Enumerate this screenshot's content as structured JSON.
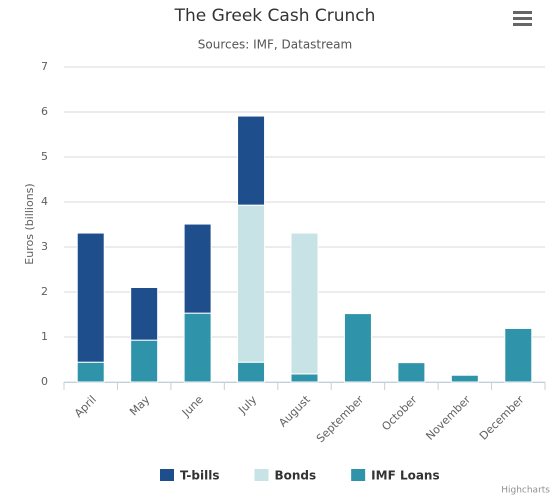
{
  "chart_data": {
    "type": "stacked-bar",
    "title": "The Greek Cash Crunch",
    "subtitle": "Sources: IMF, Datastream",
    "y_label": "Euros (billions)",
    "categories": [
      "April",
      "May",
      "June",
      "July",
      "August",
      "September",
      "October",
      "November",
      "December"
    ],
    "series": [
      {
        "name": "IMF Loans",
        "color": "#2f94aa",
        "values": [
          0.44,
          0.93,
          1.53,
          0.44,
          0.18,
          1.52,
          0.43,
          0.15,
          1.19
        ]
      },
      {
        "name": "Bonds",
        "color": "#c8e3e5",
        "values": [
          null,
          null,
          null,
          3.49,
          3.13,
          null,
          null,
          null,
          null
        ]
      },
      {
        "name": "T-bills",
        "color": "#1f4e8c",
        "values": [
          2.87,
          1.17,
          1.98,
          1.98,
          null,
          null,
          null,
          null,
          null
        ]
      }
    ],
    "legend_order": [
      2,
      1,
      0
    ],
    "ylim": [
      0,
      7
    ],
    "yticks": [
      0,
      1,
      2,
      3,
      4,
      5,
      6,
      7
    ],
    "grid": true,
    "credits": "Highcharts"
  }
}
